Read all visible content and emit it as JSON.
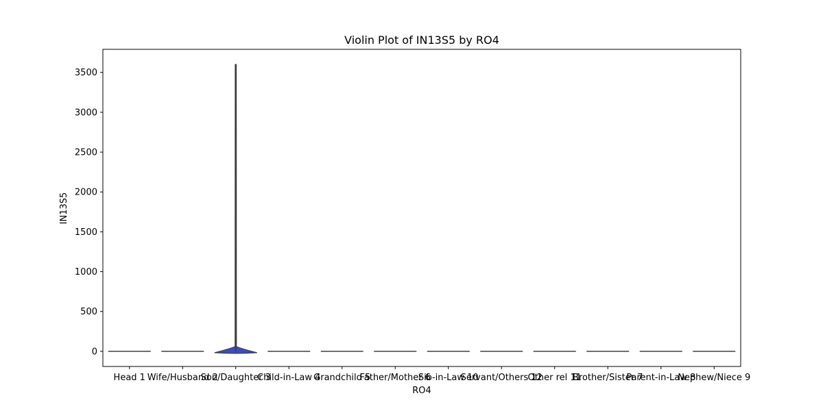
{
  "chart_data": {
    "type": "violin",
    "title": "Violin Plot of IN13S5 by RO4",
    "xlabel": "RO4",
    "ylabel": "IN13S5",
    "ylim": [
      -190,
      3790
    ],
    "yticks": [
      0,
      500,
      1000,
      1500,
      2000,
      2500,
      3000,
      3500
    ],
    "categories": [
      "Head 1",
      "Wife/Husband 2",
      "Son/Daughter 3",
      "Child-in-Law 4",
      "Grandchild 5",
      "Father/Mother 6",
      "Sib-in-Law 10",
      "Servant/Others 12",
      "Other rel 11",
      "Brother/Sister 7",
      "Parent-in-Law 8",
      "Nephew/Niece 9"
    ],
    "violins": [
      {
        "category": "Head 1",
        "min": 0,
        "max": 0,
        "median": 0,
        "spread": 0
      },
      {
        "category": "Wife/Husband 2",
        "min": 0,
        "max": 0,
        "median": 0,
        "spread": 0
      },
      {
        "category": "Son/Daughter 3",
        "min": 0,
        "max": 3600,
        "median": 0,
        "spread": 60
      },
      {
        "category": "Child-in-Law 4",
        "min": 0,
        "max": 0,
        "median": 0,
        "spread": 0
      },
      {
        "category": "Grandchild 5",
        "min": 0,
        "max": 0,
        "median": 0,
        "spread": 0
      },
      {
        "category": "Father/Mother 6",
        "min": 0,
        "max": 0,
        "median": 0,
        "spread": 0
      },
      {
        "category": "Sib-in-Law 10",
        "min": 0,
        "max": 0,
        "median": 0,
        "spread": 0
      },
      {
        "category": "Servant/Others 12",
        "min": 0,
        "max": 0,
        "median": 0,
        "spread": 0
      },
      {
        "category": "Other rel 11",
        "min": 0,
        "max": 0,
        "median": 0,
        "spread": 0
      },
      {
        "category": "Brother/Sister 7",
        "min": 0,
        "max": 0,
        "median": 0,
        "spread": 0
      },
      {
        "category": "Parent-in-Law 8",
        "min": 0,
        "max": 0,
        "median": 0,
        "spread": 0
      },
      {
        "category": "Nephew/Niece 9",
        "min": 0,
        "max": 0,
        "median": 0,
        "spread": 0
      }
    ],
    "violin_color": "#3b4cc0",
    "line_color": "#3f3f3f",
    "grid": false,
    "legend": "none"
  }
}
